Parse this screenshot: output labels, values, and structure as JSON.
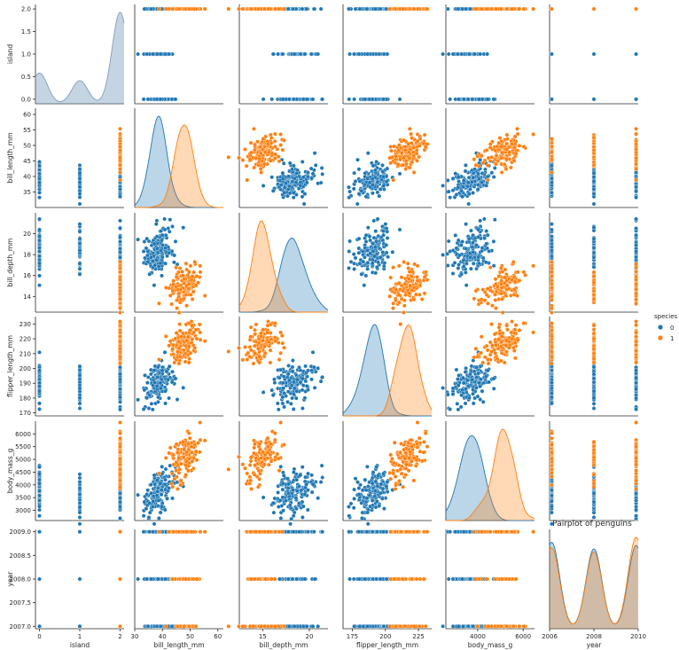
{
  "chart_data": {
    "type": "scatter",
    "kind": "pairplot",
    "title": "Pairplot of penguins",
    "legend": {
      "title": "species",
      "entries": [
        "0",
        "1"
      ],
      "position": "right-center"
    },
    "colors": {
      "species_0": "#1f77b4",
      "species_1": "#ff7f0e"
    },
    "variables": [
      "island",
      "bill_length_mm",
      "bill_depth_mm",
      "flipper_length_mm",
      "body_mass_g",
      "year"
    ],
    "ranges": {
      "island": [
        -0.1,
        2.1
      ],
      "bill_length_mm": [
        30,
        62
      ],
      "bill_depth_mm": [
        12.5,
        22
      ],
      "flipper_length_mm": [
        168,
        235
      ],
      "body_mass_g": [
        2600,
        6500
      ],
      "year": [
        2006.95,
        2009.05
      ]
    },
    "ticks": {
      "island": [
        "0.0",
        "0.5",
        "1.0",
        "1.5",
        "2.0"
      ],
      "island_x": [
        "0",
        "1",
        "2"
      ],
      "bill_length_mm": [
        "35",
        "40",
        "45",
        "50",
        "55",
        "60"
      ],
      "bill_length_mm_x": [
        "30",
        "40",
        "50",
        "60"
      ],
      "bill_depth_mm": [
        "14",
        "16",
        "18",
        "20"
      ],
      "bill_depth_mm_x": [
        "15",
        "20"
      ],
      "flipper_length_mm": [
        "170",
        "180",
        "190",
        "200",
        "210",
        "220",
        "230"
      ],
      "flipper_length_mm_x": [
        "175",
        "200",
        "225"
      ],
      "body_mass_g": [
        "3000",
        "3500",
        "4000",
        "4500",
        "5000",
        "5500",
        "6000"
      ],
      "body_mass_g_x": [
        "4000",
        "6000"
      ],
      "year": [
        "2007.0",
        "2007.5",
        "2008.0",
        "2008.5",
        "2009.0"
      ],
      "year_x": [
        "2006",
        "2008",
        "2010"
      ]
    },
    "species_stats": {
      "0": {
        "island_values": [
          0,
          1,
          2
        ],
        "bill_length_mm": [
          38.8,
          2.7
        ],
        "bill_depth_mm": [
          18.3,
          1.2
        ],
        "flipper_length_mm": [
          190,
          6.5
        ],
        "body_mass_g": [
          3700,
          450
        ]
      },
      "1": {
        "island_values": [
          2
        ],
        "bill_length_mm": [
          47.5,
          3.1
        ],
        "bill_depth_mm": [
          15.0,
          1.0
        ],
        "flipper_length_mm": [
          217,
          6.5
        ],
        "body_mass_g": [
          5080,
          500
        ]
      }
    },
    "years": [
      2007,
      2008,
      2009
    ]
  }
}
